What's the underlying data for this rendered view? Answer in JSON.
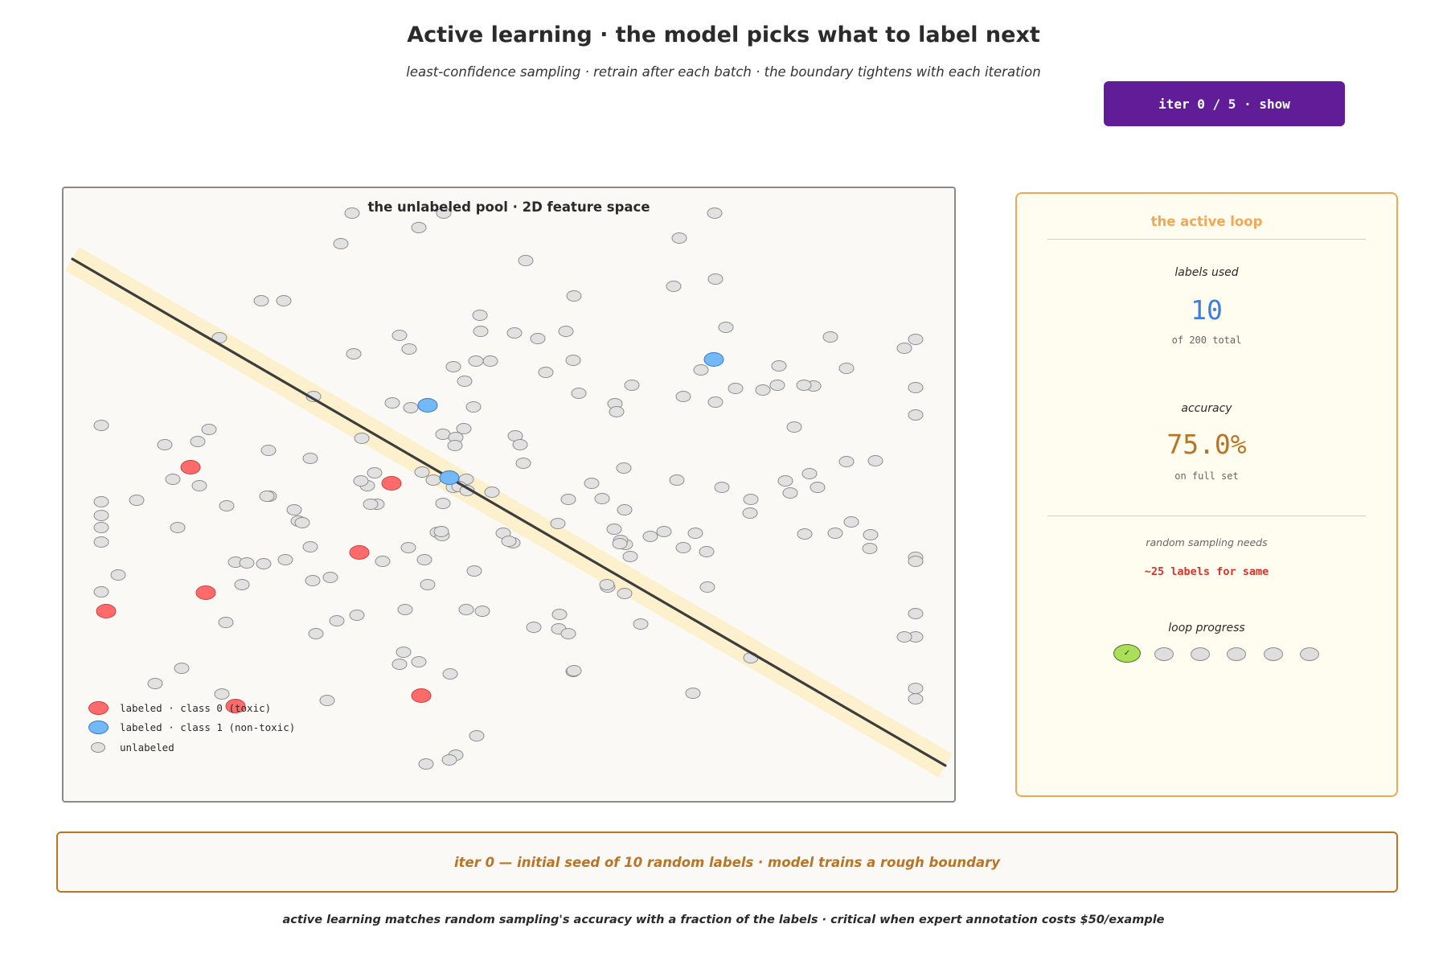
{
  "header": {
    "title": "Active learning  ·  the model picks what to label next",
    "subtitle": "least-confidence sampling  ·  retrain after each batch  ·  the boundary tightens with each iteration"
  },
  "iter_button": {
    "label": "iter 0 / 5  ·  show"
  },
  "pool": {
    "title": "the unlabeled pool  ·  2D feature space",
    "legend": [
      {
        "label": "labeled · class 0 (toxic)",
        "color": "#ff6b6b"
      },
      {
        "label": "labeled · class 1 (non-toxic)",
        "color": "#74b9f7"
      },
      {
        "label": "unlabeled",
        "color": "#e1e1e1"
      }
    ]
  },
  "side_panel": {
    "title": "the active loop",
    "labels_used_label": "labels used",
    "labels_used_value": "10",
    "labels_used_total": "of 200 total",
    "accuracy_label": "accuracy",
    "accuracy_value": "75.0%",
    "accuracy_note": "on full set",
    "random_label": "random sampling needs",
    "random_value": "~25 labels for same",
    "progress_label": "loop progress",
    "progress_check": "✓",
    "progress_total": 6,
    "progress_done": 1
  },
  "status_banner": "iter 0 — initial seed of 10 random labels  ·  model trains a rough boundary",
  "footer": "active learning matches random sampling's accuracy with a fraction of the labels  ·  critical when expert annotation costs $50/example",
  "colors": {
    "class0": "#ff6b6b",
    "class1": "#74b9f7",
    "unlabeled": "#e1e1e1",
    "accent_purple": "#611d98",
    "accent_orange": "#f4a657",
    "accent_brown": "#b97524",
    "accent_blue": "#3d7ee0"
  }
}
